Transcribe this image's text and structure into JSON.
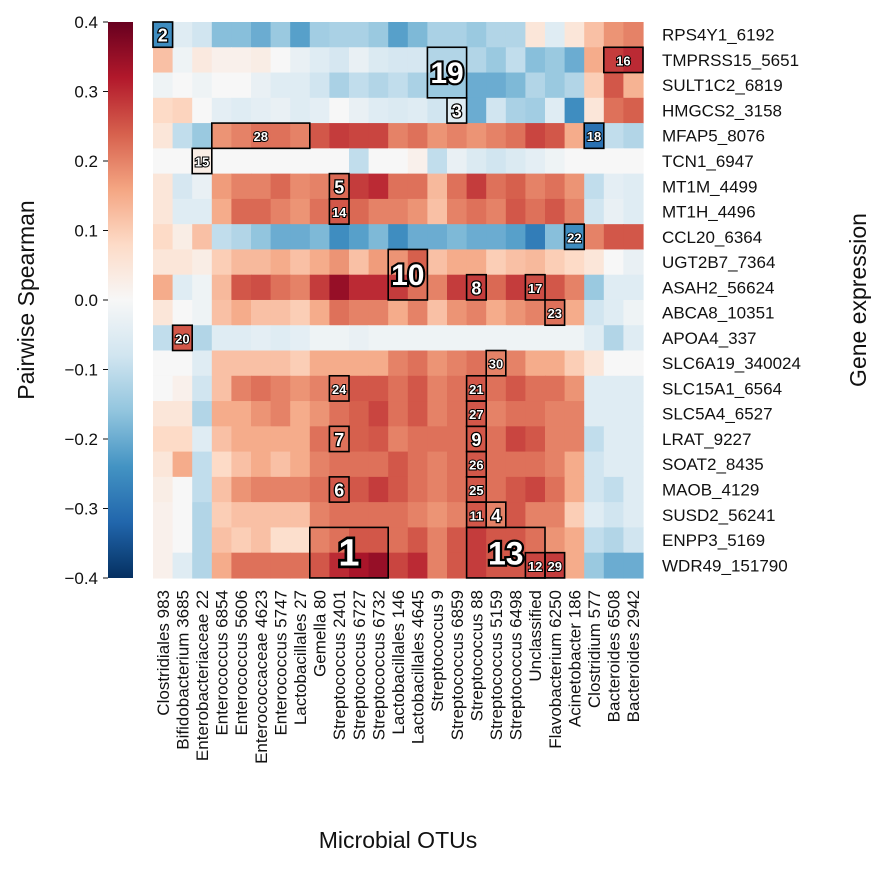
{
  "chart_data": {
    "type": "heatmap",
    "xlabel": "Microbial OTUs",
    "ylabel": "Gene expression",
    "colorbar_label": "Pairwise Spearman",
    "colorbar_range": [
      -0.4,
      0.4
    ],
    "colorbar_ticks": [
      "0.4",
      "0.3",
      "0.2",
      "0.1",
      "0.0",
      "−0.1",
      "−0.2",
      "−0.3",
      "−0.4"
    ],
    "colormap": [
      "#67001f",
      "#b2182b",
      "#d6604d",
      "#f4a582",
      "#fddbc7",
      "#f7f7f7",
      "#d1e5f0",
      "#92c5de",
      "#4393c3",
      "#2166ac",
      "#053061"
    ],
    "columns": [
      "Clostridiales 983",
      "Bifidobacterium 3685",
      "Enterobacteriaceae 22",
      "Enterococcus 6854",
      "Enterococcus 5606",
      "Enterococcaceae 4623",
      "Enterococcus 5747",
      "Lactobacillales 27",
      "Gemella 80",
      "Streptococcus 2401",
      "Streptococcus 6727",
      "Streptococcus 6732",
      "Lactobacillales 146",
      "Lactobacillales 4645",
      "Streptococcus 9",
      "Streptococcus 6859",
      "Streptococcus 88",
      "Streptococcus 5159",
      "Streptococcus 6498",
      "Unclassified",
      "Flavobacterium 6250",
      "Acinetobacter 186",
      "Clostridium 577",
      "Bacteroides 6508",
      "Bacteroides 2942"
    ],
    "rows": [
      "RPS4Y1_6192",
      "TMPRSS15_5651",
      "SULT1C2_6819",
      "HMGCS2_3158",
      "MFAP5_8076",
      "TCN1_6947",
      "MT1M_4499",
      "MT1H_4496",
      "CCL20_6364",
      "UGT2B7_7364",
      "ASAH2_56624",
      "ABCA8_10351",
      "APOA4_337",
      "SLC6A19_340024",
      "SLC15A1_6564",
      "SLC5A4_6527",
      "LRAT_9227",
      "SOAT2_8435",
      "MAOB_4129",
      "SUSD2_56241",
      "ENPP3_5169",
      "WDR49_151790"
    ],
    "values": [
      [
        -0.25,
        -0.05,
        -0.08,
        -0.17,
        -0.17,
        -0.2,
        -0.15,
        -0.22,
        -0.14,
        -0.13,
        -0.13,
        -0.15,
        -0.22,
        -0.18,
        -0.13,
        -0.13,
        -0.15,
        -0.12,
        -0.12,
        0.05,
        -0.05,
        0.05,
        0.12,
        0.18,
        0.2
      ],
      [
        0.12,
        -0.02,
        0.04,
        0.02,
        0.02,
        0.03,
        0.0,
        -0.03,
        -0.05,
        -0.07,
        -0.03,
        -0.06,
        -0.07,
        -0.07,
        -0.12,
        -0.12,
        -0.12,
        -0.15,
        -0.1,
        -0.17,
        -0.15,
        -0.2,
        0.15,
        0.28,
        0.3
      ],
      [
        -0.02,
        0.0,
        -0.02,
        0.0,
        0.0,
        -0.03,
        -0.05,
        -0.05,
        -0.08,
        -0.13,
        -0.1,
        -0.12,
        -0.1,
        -0.13,
        -0.15,
        -0.15,
        -0.2,
        -0.2,
        -0.18,
        -0.12,
        -0.15,
        -0.12,
        0.1,
        0.25,
        0.14
      ],
      [
        0.08,
        0.09,
        0.0,
        -0.04,
        -0.05,
        -0.04,
        -0.03,
        -0.05,
        -0.04,
        0.0,
        -0.03,
        -0.05,
        -0.06,
        -0.05,
        -0.08,
        -0.05,
        -0.2,
        -0.08,
        -0.13,
        -0.14,
        -0.05,
        -0.25,
        0.05,
        0.22,
        0.24
      ],
      [
        0.05,
        -0.1,
        -0.15,
        0.18,
        0.2,
        0.22,
        0.22,
        0.2,
        0.25,
        0.28,
        0.27,
        0.27,
        0.2,
        0.22,
        0.18,
        0.2,
        0.18,
        0.2,
        0.22,
        0.27,
        0.25,
        0.15,
        -0.3,
        -0.1,
        -0.12
      ],
      [
        0.0,
        0.0,
        0.03,
        0.0,
        0.0,
        0.0,
        0.0,
        0.0,
        0.0,
        0.0,
        -0.1,
        0.0,
        0.0,
        0.02,
        -0.1,
        -0.03,
        -0.06,
        -0.08,
        -0.06,
        -0.04,
        -0.02,
        0.0,
        0.0,
        0.0,
        0.0
      ],
      [
        0.05,
        -0.07,
        -0.03,
        0.17,
        0.2,
        0.2,
        0.23,
        0.19,
        0.2,
        0.23,
        0.28,
        0.3,
        0.22,
        0.22,
        0.13,
        0.22,
        0.28,
        0.22,
        0.24,
        0.2,
        0.22,
        0.18,
        -0.1,
        -0.04,
        -0.05
      ],
      [
        0.05,
        -0.05,
        -0.05,
        0.15,
        0.23,
        0.23,
        0.2,
        0.18,
        0.22,
        0.25,
        0.23,
        0.2,
        0.2,
        0.18,
        0.12,
        0.2,
        0.22,
        0.2,
        0.25,
        0.22,
        0.25,
        0.2,
        -0.08,
        -0.03,
        -0.05
      ],
      [
        0.08,
        0.03,
        0.12,
        -0.1,
        -0.12,
        -0.16,
        -0.2,
        -0.2,
        -0.18,
        -0.25,
        -0.22,
        -0.18,
        -0.25,
        -0.2,
        -0.2,
        -0.18,
        -0.2,
        -0.2,
        -0.22,
        -0.28,
        -0.17,
        -0.25,
        0.2,
        0.25,
        0.25
      ],
      [
        0.05,
        0.05,
        0.03,
        0.1,
        0.13,
        0.13,
        0.15,
        0.12,
        0.15,
        0.18,
        0.12,
        0.17,
        0.18,
        0.24,
        0.12,
        0.15,
        0.15,
        0.1,
        0.12,
        0.13,
        0.1,
        0.08,
        0.05,
        0.0,
        -0.03
      ],
      [
        0.15,
        -0.05,
        -0.02,
        0.13,
        0.25,
        0.26,
        0.22,
        0.2,
        0.28,
        0.35,
        0.3,
        0.3,
        0.28,
        0.22,
        0.2,
        0.28,
        0.28,
        0.23,
        0.28,
        0.26,
        0.25,
        0.2,
        -0.15,
        -0.05,
        -0.05
      ],
      [
        0.05,
        0.0,
        -0.02,
        0.12,
        0.15,
        0.12,
        0.12,
        0.1,
        0.15,
        0.22,
        0.2,
        0.2,
        0.15,
        0.2,
        0.12,
        0.18,
        0.2,
        0.15,
        0.18,
        0.2,
        0.22,
        0.15,
        -0.08,
        -0.05,
        -0.02
      ],
      [
        -0.1,
        0.25,
        -0.12,
        -0.05,
        -0.05,
        -0.04,
        -0.05,
        -0.04,
        -0.02,
        -0.02,
        -0.03,
        -0.02,
        -0.02,
        -0.02,
        -0.02,
        -0.02,
        -0.02,
        -0.02,
        -0.02,
        -0.02,
        -0.02,
        -0.02,
        -0.05,
        -0.12,
        -0.05
      ],
      [
        0.0,
        0.0,
        -0.05,
        0.12,
        0.12,
        0.12,
        0.12,
        0.1,
        0.15,
        0.15,
        0.15,
        0.15,
        0.2,
        0.22,
        0.18,
        0.2,
        0.22,
        0.2,
        0.2,
        0.15,
        0.15,
        0.1,
        0.05,
        0.0,
        0.0
      ],
      [
        0.0,
        0.02,
        -0.08,
        0.12,
        0.2,
        0.22,
        0.2,
        0.18,
        0.2,
        0.22,
        0.25,
        0.25,
        0.22,
        0.25,
        0.2,
        0.22,
        0.25,
        0.22,
        0.25,
        0.22,
        0.22,
        0.18,
        -0.05,
        -0.05,
        -0.05
      ],
      [
        0.05,
        0.05,
        -0.12,
        0.15,
        0.15,
        0.18,
        0.2,
        0.15,
        0.18,
        0.22,
        0.24,
        0.27,
        0.22,
        0.25,
        0.2,
        0.22,
        0.25,
        0.2,
        0.22,
        0.22,
        0.2,
        0.2,
        -0.05,
        -0.05,
        -0.05
      ],
      [
        0.08,
        0.08,
        -0.05,
        0.12,
        0.15,
        0.15,
        0.15,
        0.15,
        0.22,
        0.22,
        0.24,
        0.25,
        0.2,
        0.22,
        0.22,
        0.22,
        0.25,
        0.22,
        0.27,
        0.25,
        0.2,
        0.2,
        -0.1,
        -0.05,
        -0.05
      ],
      [
        0.05,
        0.15,
        -0.1,
        0.08,
        0.12,
        0.15,
        0.12,
        0.15,
        0.2,
        0.22,
        0.22,
        0.22,
        0.25,
        0.22,
        0.2,
        0.22,
        0.25,
        0.22,
        0.22,
        0.22,
        0.2,
        0.15,
        -0.08,
        -0.05,
        -0.05
      ],
      [
        0.03,
        0.0,
        -0.1,
        0.12,
        0.18,
        0.2,
        0.2,
        0.2,
        0.22,
        0.25,
        0.25,
        0.28,
        0.25,
        0.22,
        0.2,
        0.22,
        0.25,
        0.22,
        0.25,
        0.27,
        0.22,
        0.15,
        -0.08,
        -0.1,
        -0.05
      ],
      [
        0.02,
        0.0,
        -0.12,
        0.1,
        0.12,
        0.12,
        0.12,
        0.12,
        0.2,
        0.22,
        0.22,
        0.22,
        0.22,
        0.2,
        0.18,
        0.2,
        0.25,
        0.2,
        0.25,
        0.2,
        0.2,
        0.1,
        -0.05,
        -0.08,
        -0.05
      ],
      [
        0.02,
        0.0,
        -0.12,
        0.12,
        0.1,
        0.12,
        0.07,
        0.07,
        0.2,
        0.22,
        0.25,
        0.25,
        0.22,
        0.25,
        0.2,
        0.25,
        0.28,
        0.25,
        0.25,
        0.22,
        0.18,
        0.15,
        -0.1,
        -0.12,
        -0.08
      ],
      [
        0.02,
        -0.05,
        -0.12,
        0.15,
        0.22,
        0.22,
        0.22,
        0.22,
        0.25,
        0.3,
        0.33,
        0.35,
        0.27,
        0.3,
        0.2,
        0.25,
        0.28,
        0.25,
        0.25,
        0.27,
        0.28,
        0.15,
        -0.15,
        -0.2,
        -0.2
      ]
    ],
    "annotations": [
      {
        "label": "1",
        "col": 8,
        "row": 20,
        "cols": 4,
        "rows": 2,
        "size": 38
      },
      {
        "label": "2",
        "col": 0,
        "row": 0,
        "cols": 1,
        "rows": 1,
        "size": 18
      },
      {
        "label": "3",
        "col": 15,
        "row": 3,
        "cols": 1,
        "rows": 1,
        "size": 18
      },
      {
        "label": "4",
        "col": 17,
        "row": 19,
        "cols": 1,
        "rows": 1,
        "size": 18
      },
      {
        "label": "5",
        "col": 9,
        "row": 6,
        "cols": 1,
        "rows": 1,
        "size": 18
      },
      {
        "label": "6",
        "col": 9,
        "row": 18,
        "cols": 1,
        "rows": 1,
        "size": 18
      },
      {
        "label": "7",
        "col": 9,
        "row": 16,
        "cols": 1,
        "rows": 1,
        "size": 18
      },
      {
        "label": "8",
        "col": 16,
        "row": 10,
        "cols": 1,
        "rows": 1,
        "size": 18
      },
      {
        "label": "9",
        "col": 16,
        "row": 16,
        "cols": 1,
        "rows": 1,
        "size": 18
      },
      {
        "label": "10",
        "col": 12,
        "row": 9,
        "cols": 2,
        "rows": 2,
        "size": 30
      },
      {
        "label": "11",
        "col": 16,
        "row": 19,
        "cols": 1,
        "rows": 1,
        "size": 13
      },
      {
        "label": "12",
        "col": 19,
        "row": 21,
        "cols": 1,
        "rows": 1,
        "size": 13
      },
      {
        "label": "13",
        "col": 16,
        "row": 20,
        "cols": 4,
        "rows": 2,
        "size": 32
      },
      {
        "label": "14",
        "col": 9,
        "row": 7,
        "cols": 1,
        "rows": 1,
        "size": 13
      },
      {
        "label": "15",
        "col": 2,
        "row": 5,
        "cols": 1,
        "rows": 1,
        "size": 13
      },
      {
        "label": "16",
        "col": 23,
        "row": 1,
        "cols": 2,
        "rows": 1,
        "size": 13
      },
      {
        "label": "17",
        "col": 19,
        "row": 10,
        "cols": 1,
        "rows": 1,
        "size": 13
      },
      {
        "label": "18",
        "col": 22,
        "row": 4,
        "cols": 1,
        "rows": 1,
        "size": 13
      },
      {
        "label": "19",
        "col": 14,
        "row": 1,
        "cols": 2,
        "rows": 2,
        "size": 30
      },
      {
        "label": "20",
        "col": 1,
        "row": 12,
        "cols": 1,
        "rows": 1,
        "size": 13
      },
      {
        "label": "21",
        "col": 16,
        "row": 14,
        "cols": 1,
        "rows": 1,
        "size": 13
      },
      {
        "label": "22",
        "col": 21,
        "row": 8,
        "cols": 1,
        "rows": 1,
        "size": 13
      },
      {
        "label": "23",
        "col": 20,
        "row": 11,
        "cols": 1,
        "rows": 1,
        "size": 13
      },
      {
        "label": "24",
        "col": 9,
        "row": 14,
        "cols": 1,
        "rows": 1,
        "size": 13
      },
      {
        "label": "25",
        "col": 16,
        "row": 18,
        "cols": 1,
        "rows": 1,
        "size": 13
      },
      {
        "label": "26",
        "col": 16,
        "row": 17,
        "cols": 1,
        "rows": 1,
        "size": 13
      },
      {
        "label": "27",
        "col": 16,
        "row": 15,
        "cols": 1,
        "rows": 1,
        "size": 13
      },
      {
        "label": "28",
        "col": 3,
        "row": 4,
        "cols": 5,
        "rows": 1,
        "size": 13
      },
      {
        "label": "29",
        "col": 20,
        "row": 21,
        "cols": 1,
        "rows": 1,
        "size": 13
      },
      {
        "label": "30",
        "col": 17,
        "row": 13,
        "cols": 1,
        "rows": 1,
        "size": 13
      }
    ]
  }
}
